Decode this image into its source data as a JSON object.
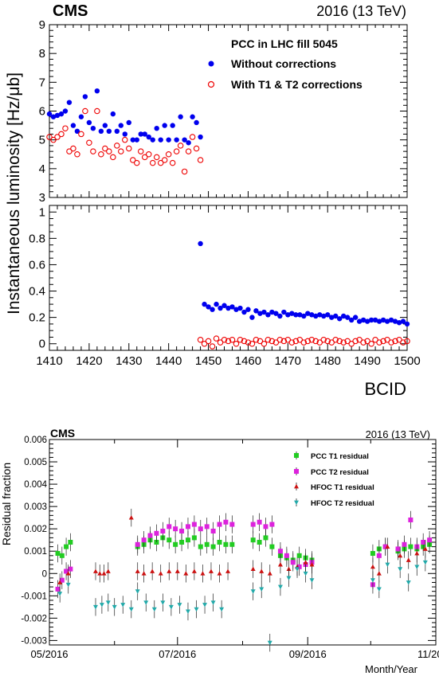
{
  "chart_data": [
    {
      "type": "scatter",
      "panel": "top-upper",
      "experiment": "CMS",
      "energy_label": "2016 (13 TeV)",
      "ylabel": "Instantaneous luminosity [Hz/μb]",
      "xlabel": "",
      "xlim": [
        1410,
        1500
      ],
      "ylim": [
        3,
        9
      ],
      "yticks": [
        3,
        4,
        5,
        6,
        7,
        8,
        9
      ],
      "legend": {
        "position": "top-right",
        "title": "PCC in LHC fill 5045",
        "entries": [
          "Without corrections",
          "With T1 & T2 corrections"
        ]
      },
      "series": [
        {
          "name": "Without corrections",
          "color": "#0000ee",
          "marker": "filled-circle",
          "x": [
            1410,
            1411,
            1412,
            1413,
            1414,
            1415,
            1416,
            1417,
            1418,
            1419,
            1420,
            1421,
            1422,
            1423,
            1424,
            1425,
            1426,
            1427,
            1428,
            1429,
            1430,
            1431,
            1432,
            1433,
            1434,
            1435,
            1436,
            1437,
            1438,
            1439,
            1440,
            1441,
            1442,
            1443,
            1444,
            1445,
            1446,
            1447,
            1448
          ],
          "y": [
            5.9,
            5.8,
            5.85,
            5.9,
            6.0,
            6.3,
            5.5,
            5.3,
            5.8,
            6.5,
            5.6,
            5.4,
            6.7,
            5.3,
            5.5,
            5.3,
            5.9,
            5.3,
            5.5,
            5.2,
            5.6,
            5.0,
            5.0,
            5.2,
            5.2,
            5.1,
            5.0,
            5.4,
            5.0,
            5.5,
            5.0,
            5.5,
            5.0,
            5.8,
            5.0,
            4.9,
            5.8,
            5.6,
            5.1
          ]
        },
        {
          "name": "With T1 & T2 corrections",
          "color": "#ee0000",
          "marker": "open-circle",
          "x": [
            1410,
            1411,
            1412,
            1413,
            1414,
            1415,
            1416,
            1417,
            1418,
            1419,
            1420,
            1421,
            1422,
            1423,
            1424,
            1425,
            1426,
            1427,
            1428,
            1429,
            1430,
            1431,
            1432,
            1433,
            1434,
            1435,
            1436,
            1437,
            1438,
            1439,
            1440,
            1441,
            1442,
            1443,
            1444,
            1445,
            1446,
            1447,
            1448
          ],
          "y": [
            5.1,
            5.0,
            5.1,
            5.2,
            5.4,
            4.6,
            4.7,
            4.5,
            5.2,
            6.0,
            4.9,
            4.6,
            6.0,
            4.5,
            4.7,
            4.6,
            4.4,
            4.8,
            4.6,
            5.0,
            4.7,
            4.3,
            4.2,
            4.6,
            4.4,
            4.5,
            4.2,
            4.4,
            4.2,
            4.3,
            4.5,
            4.2,
            4.6,
            4.8,
            3.9,
            4.6,
            5.1,
            4.7,
            4.3
          ]
        }
      ]
    },
    {
      "type": "scatter",
      "panel": "top-lower",
      "xlabel": "BCID",
      "ylabel": "",
      "xlim": [
        1410,
        1500
      ],
      "ylim": [
        -0.05,
        1.05
      ],
      "xticks": [
        1410,
        1420,
        1430,
        1440,
        1450,
        1460,
        1470,
        1480,
        1490,
        1500
      ],
      "yticks": [
        0,
        0.2,
        0.4,
        0.6,
        0.8,
        1
      ],
      "series": [
        {
          "name": "Without corrections",
          "color": "#0000ee",
          "marker": "filled-circle",
          "x": [
            1448,
            1449,
            1450,
            1451,
            1452,
            1453,
            1454,
            1455,
            1456,
            1457,
            1458,
            1459,
            1460,
            1461,
            1462,
            1463,
            1464,
            1465,
            1466,
            1467,
            1468,
            1469,
            1470,
            1471,
            1472,
            1473,
            1474,
            1475,
            1476,
            1477,
            1478,
            1479,
            1480,
            1481,
            1482,
            1483,
            1484,
            1485,
            1486,
            1487,
            1488,
            1489,
            1490,
            1491,
            1492,
            1493,
            1494,
            1495,
            1496,
            1497,
            1498,
            1499,
            1500
          ],
          "y": [
            0.76,
            0.3,
            0.28,
            0.26,
            0.3,
            0.27,
            0.29,
            0.27,
            0.28,
            0.26,
            0.27,
            0.24,
            0.26,
            0.2,
            0.25,
            0.23,
            0.24,
            0.22,
            0.24,
            0.23,
            0.21,
            0.24,
            0.22,
            0.23,
            0.22,
            0.22,
            0.21,
            0.23,
            0.22,
            0.21,
            0.22,
            0.21,
            0.22,
            0.2,
            0.21,
            0.19,
            0.21,
            0.2,
            0.18,
            0.2,
            0.17,
            0.18,
            0.17,
            0.18,
            0.18,
            0.17,
            0.18,
            0.17,
            0.18,
            0.17,
            0.16,
            0.17,
            0.15
          ]
        },
        {
          "name": "With T1 & T2 corrections",
          "color": "#ee0000",
          "marker": "open-circle",
          "x": [
            1448,
            1449,
            1450,
            1451,
            1452,
            1453,
            1454,
            1455,
            1456,
            1457,
            1458,
            1459,
            1460,
            1461,
            1462,
            1463,
            1464,
            1465,
            1466,
            1467,
            1468,
            1469,
            1470,
            1471,
            1472,
            1473,
            1474,
            1475,
            1476,
            1477,
            1478,
            1479,
            1480,
            1481,
            1482,
            1483,
            1484,
            1485,
            1486,
            1487,
            1488,
            1489,
            1490,
            1491,
            1492,
            1493,
            1494,
            1495,
            1496,
            1497,
            1498,
            1499,
            1500
          ],
          "y": [
            0.03,
            0.0,
            0.02,
            -0.02,
            0.04,
            0.01,
            0.03,
            0.02,
            0.03,
            0.0,
            0.03,
            0.02,
            0.01,
            0.0,
            0.03,
            0.02,
            0.0,
            0.03,
            0.02,
            0.01,
            0.03,
            0.02,
            0.03,
            0.01,
            0.02,
            0.03,
            0.01,
            0.02,
            0.03,
            0.02,
            0.01,
            0.03,
            0.02,
            0.01,
            0.03,
            0.02,
            0.01,
            0.02,
            0.0,
            0.02,
            0.03,
            0.01,
            0.02,
            0.0,
            0.03,
            0.01,
            0.02,
            0.03,
            0.01,
            0.02,
            0.03,
            0.01,
            0.02
          ]
        }
      ]
    },
    {
      "type": "scatter",
      "panel": "bottom",
      "experiment": "CMS",
      "energy_label": "2016 (13 TeV)",
      "ylabel": "Residual fraction",
      "xlabel": "Month/Year",
      "xlim": [
        "05/2016",
        "11/2016"
      ],
      "xticks": [
        "05/2016",
        "07/2016",
        "09/2016",
        "11/2016"
      ],
      "ylim": [
        -0.0032,
        0.006
      ],
      "yticks": [
        "-0.003",
        "-0.002",
        "-0.001",
        "0",
        "0.001",
        "0.002",
        "0.003",
        "0.004",
        "0.005",
        "0.006"
      ],
      "legend": {
        "position": "top-right",
        "entries": [
          "PCC T1 residual",
          "PCC T2 residual",
          "HFOC T1 residual",
          "HFOC T2 residual"
        ]
      },
      "series": [
        {
          "name": "PCC T1 residual",
          "color": "#22cc22",
          "marker": "filled-square",
          "x": [
            "2016-05-05",
            "2016-05-07",
            "2016-05-09",
            "2016-05-11",
            "2016-06-12",
            "2016-06-15",
            "2016-06-18",
            "2016-06-21",
            "2016-06-24",
            "2016-06-27",
            "2016-06-30",
            "2016-07-03",
            "2016-07-06",
            "2016-07-09",
            "2016-07-12",
            "2016-07-15",
            "2016-07-18",
            "2016-07-21",
            "2016-07-24",
            "2016-07-27",
            "2016-08-06",
            "2016-08-09",
            "2016-08-12",
            "2016-08-15",
            "2016-08-19",
            "2016-08-22",
            "2016-08-25",
            "2016-08-28",
            "2016-08-31",
            "2016-09-03",
            "2016-10-02",
            "2016-10-05",
            "2016-10-08",
            "2016-10-14",
            "2016-10-17",
            "2016-10-20",
            "2016-10-23",
            "2016-10-26",
            "2016-10-29"
          ],
          "y": [
            0.0009,
            0.0008,
            0.0012,
            0.0014,
            0.0012,
            0.0013,
            0.0015,
            0.0014,
            0.0016,
            0.0015,
            0.0013,
            0.0014,
            0.0015,
            0.0016,
            0.0012,
            0.0013,
            0.0012,
            0.0014,
            0.0013,
            0.0013,
            0.0015,
            0.0014,
            0.0016,
            0.0012,
            0.0008,
            0.0007,
            0.0006,
            0.0008,
            0.0007,
            0.0006,
            0.0009,
            0.0011,
            0.0012,
            0.001,
            0.0011,
            0.0012,
            0.0011,
            0.0012,
            0.0013
          ]
        },
        {
          "name": "PCC T2 residual",
          "color": "#dd22dd",
          "marker": "filled-square",
          "x": [
            "2016-05-05",
            "2016-05-07",
            "2016-05-09",
            "2016-05-11",
            "2016-06-12",
            "2016-06-15",
            "2016-06-18",
            "2016-06-21",
            "2016-06-24",
            "2016-06-27",
            "2016-06-30",
            "2016-07-03",
            "2016-07-06",
            "2016-07-09",
            "2016-07-12",
            "2016-07-15",
            "2016-07-18",
            "2016-07-21",
            "2016-07-24",
            "2016-07-27",
            "2016-08-06",
            "2016-08-09",
            "2016-08-12",
            "2016-08-15",
            "2016-08-19",
            "2016-08-22",
            "2016-08-25",
            "2016-08-28",
            "2016-08-31",
            "2016-09-03",
            "2016-10-02",
            "2016-10-05",
            "2016-10-08",
            "2016-10-14",
            "2016-10-17",
            "2016-10-20",
            "2016-10-23",
            "2016-10-26",
            "2016-10-29"
          ],
          "y": [
            -0.0007,
            -0.0003,
            0.0001,
            0.0002,
            0.0013,
            0.0015,
            0.0017,
            0.0018,
            0.0019,
            0.0021,
            0.002,
            0.0019,
            0.0021,
            0.0022,
            0.002,
            0.0021,
            0.0019,
            0.0022,
            0.0023,
            0.0022,
            0.0022,
            0.0023,
            0.0021,
            0.0022,
            0.001,
            0.0008,
            0.0005,
            0.0003,
            0.0004,
            0.0005,
            -0.0005,
            0.0008,
            0.0012,
            0.0011,
            0.0013,
            0.0024,
            0.0012,
            0.0014,
            0.0015
          ]
        },
        {
          "name": "HFOC T1 residual",
          "color": "#cc1111",
          "marker": "triangle-up",
          "x": [
            "2016-05-06",
            "2016-05-10",
            "2016-05-23",
            "2016-05-25",
            "2016-05-27",
            "2016-05-29",
            "2016-06-09",
            "2016-06-12",
            "2016-06-15",
            "2016-06-19",
            "2016-06-23",
            "2016-06-27",
            "2016-07-01",
            "2016-07-05",
            "2016-07-09",
            "2016-07-13",
            "2016-07-17",
            "2016-07-21",
            "2016-07-25",
            "2016-08-06",
            "2016-08-10",
            "2016-08-14",
            "2016-08-19",
            "2016-08-23",
            "2016-08-27",
            "2016-08-31",
            "2016-09-03",
            "2016-10-02",
            "2016-10-05",
            "2016-10-09",
            "2016-10-15",
            "2016-10-19",
            "2016-10-23",
            "2016-10-27"
          ],
          "y": [
            -0.0004,
            0.0,
            0.0001,
            0.0,
            0.0,
            0.0001,
            0.0025,
            0.0001,
            0.0,
            0.0001,
            0.0,
            0.0001,
            0.0001,
            0.0,
            0.0001,
            0.0,
            0.0001,
            0.0,
            0.0001,
            0.0002,
            0.0001,
            0.0,
            0.0004,
            0.0002,
            0.0003,
            0.0005,
            0.0004,
            0.0003,
            0.0,
            0.0012,
            0.0008,
            0.0006,
            0.0009,
            0.0011
          ]
        },
        {
          "name": "HFOC T2 residual",
          "color": "#22aaaa",
          "marker": "triangle-down",
          "x": [
            "2016-05-06",
            "2016-05-10",
            "2016-05-23",
            "2016-05-26",
            "2016-05-29",
            "2016-06-01",
            "2016-06-05",
            "2016-06-09",
            "2016-06-12",
            "2016-06-16",
            "2016-06-20",
            "2016-06-24",
            "2016-06-28",
            "2016-07-02",
            "2016-07-06",
            "2016-07-10",
            "2016-07-14",
            "2016-07-18",
            "2016-07-22",
            "2016-08-06",
            "2016-08-10",
            "2016-08-14",
            "2016-08-19",
            "2016-08-23",
            "2016-08-27",
            "2016-08-31",
            "2016-09-03",
            "2016-10-02",
            "2016-10-05",
            "2016-10-09",
            "2016-10-15",
            "2016-10-19",
            "2016-10-23",
            "2016-10-27"
          ],
          "y": [
            -0.0009,
            -0.0005,
            -0.0015,
            -0.0014,
            -0.0013,
            -0.0015,
            -0.0014,
            -0.0016,
            -0.0008,
            -0.0013,
            -0.0016,
            -0.0013,
            -0.0015,
            -0.0014,
            -0.0017,
            -0.0016,
            -0.0014,
            -0.0013,
            -0.0016,
            -0.0008,
            -0.0007,
            -0.0031,
            -0.0006,
            -0.0002,
            0.0002,
            0.0,
            -0.0003,
            -0.0003,
            -0.0007,
            0.0004,
            0.0002,
            -0.0004,
            0.0003,
            0.0005
          ]
        }
      ]
    }
  ]
}
